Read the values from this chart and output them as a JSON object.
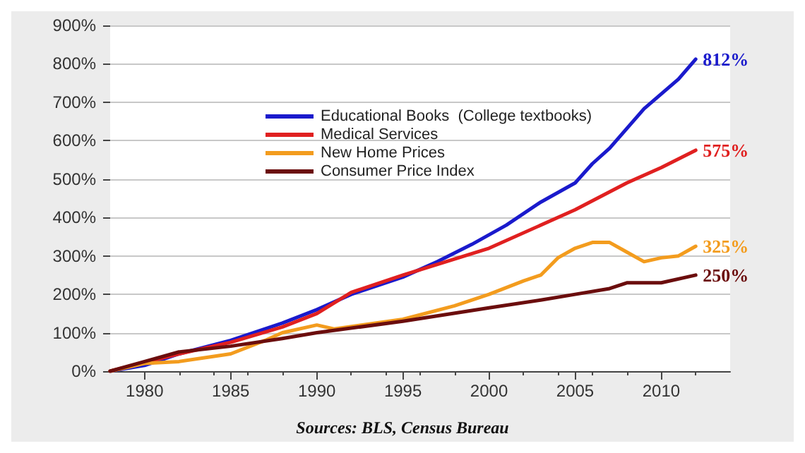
{
  "chart_data": {
    "type": "line",
    "annotations": [
      "Sources: BLS, Census Bureau"
    ],
    "xlim": [
      1978,
      2014
    ],
    "xticks": [
      1980,
      1985,
      1990,
      1995,
      2000,
      2005,
      2010
    ],
    "ylim": [
      0,
      900
    ],
    "yticks": [
      {
        "value": 0,
        "label": "0%"
      },
      {
        "value": 100,
        "label": "100%"
      },
      {
        "value": 200,
        "label": "200%"
      },
      {
        "value": 300,
        "label": "300%"
      },
      {
        "value": 400,
        "label": "400%"
      },
      {
        "value": 500,
        "label": "500%"
      },
      {
        "value": 600,
        "label": "600%"
      },
      {
        "value": 700,
        "label": "700%"
      },
      {
        "value": 800,
        "label": "800%"
      },
      {
        "value": 900,
        "label": "900%"
      }
    ],
    "grid": "y",
    "legend": "top",
    "marker": "none",
    "line_style": "solid",
    "series": [
      {
        "name": "Educational Books  (College textbooks)",
        "color": "#1a1acc",
        "x": [
          1978,
          1980,
          1982,
          1985,
          1988,
          1990,
          1992,
          1995,
          1997,
          1999,
          2001,
          2003,
          2005,
          2006,
          2007,
          2009,
          2011,
          2012
        ],
        "values": [
          0,
          15,
          45,
          80,
          125,
          160,
          200,
          245,
          285,
          330,
          380,
          440,
          490,
          540,
          580,
          683,
          760,
          812
        ],
        "value_labels": [
          null,
          null,
          null,
          null,
          null,
          null,
          null,
          null,
          null,
          null,
          null,
          null,
          null,
          null,
          null,
          null,
          null,
          "812%"
        ]
      },
      {
        "name": "Medical Services",
        "color": "#e02020",
        "x": [
          1978,
          1982,
          1985,
          1988,
          1990,
          1992,
          1995,
          2000,
          2005,
          2008,
          2010,
          2012
        ],
        "values": [
          0,
          45,
          75,
          115,
          150,
          205,
          250,
          320,
          420,
          490,
          530,
          575
        ],
        "value_labels": [
          null,
          null,
          null,
          null,
          null,
          null,
          null,
          null,
          null,
          null,
          null,
          "575%"
        ]
      },
      {
        "name": "New Home Prices",
        "color": "#f39c1e",
        "x": [
          1978,
          1980,
          1982,
          1985,
          1987,
          1988,
          1990,
          1991,
          1995,
          1998,
          2000,
          2002,
          2003,
          2004,
          2005,
          2006,
          2007,
          2008,
          2009,
          2010,
          2011,
          2012
        ],
        "values": [
          0,
          20,
          25,
          45,
          80,
          100,
          120,
          110,
          135,
          170,
          200,
          235,
          250,
          295,
          320,
          335,
          335,
          310,
          285,
          295,
          300,
          325
        ],
        "value_labels": [
          null,
          null,
          null,
          null,
          null,
          null,
          null,
          null,
          null,
          null,
          null,
          null,
          null,
          null,
          null,
          null,
          null,
          null,
          null,
          null,
          null,
          "325%"
        ]
      },
      {
        "name": "Consumer Price Index",
        "color": "#6b0d0d",
        "x": [
          1978,
          1980,
          1982,
          1985,
          1988,
          1990,
          1995,
          2000,
          2003,
          2005,
          2007,
          2008,
          2010,
          2012
        ],
        "values": [
          0,
          25,
          50,
          65,
          85,
          100,
          130,
          165,
          185,
          200,
          215,
          230,
          230,
          250
        ],
        "value_labels": [
          null,
          null,
          null,
          null,
          null,
          null,
          null,
          null,
          null,
          null,
          null,
          null,
          null,
          "250%"
        ]
      }
    ]
  }
}
